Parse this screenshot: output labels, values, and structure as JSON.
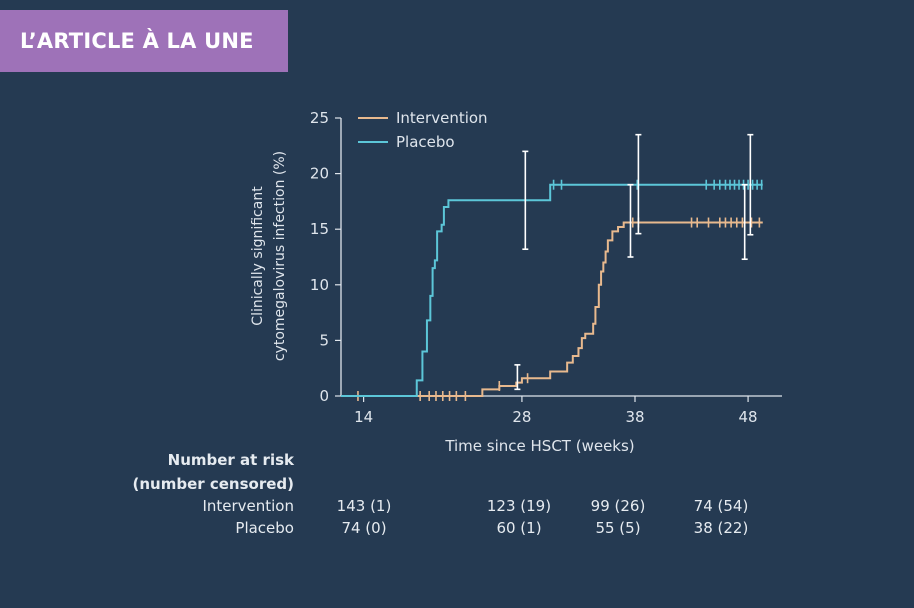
{
  "banner": {
    "text": "L’ARTICLE À LA UNE"
  },
  "chart_data": {
    "type": "line",
    "title": "",
    "xlabel": "Time since HSCT (weeks)",
    "ylabel_line1": "Clinically significant",
    "ylabel_line2": "cytomegalovirus  infection (%)",
    "ylim": [
      0,
      25
    ],
    "xlim": [
      12,
      51
    ],
    "xticks": [
      14,
      28,
      38,
      48
    ],
    "yticks": [
      0,
      5,
      10,
      15,
      20,
      25
    ],
    "grid": false,
    "legend_position": "top-left",
    "series": [
      {
        "name": "Intervention",
        "color": "#e8b98e",
        "steps": [
          [
            12,
            0
          ],
          [
            23.5,
            0
          ],
          [
            24.5,
            0.6
          ],
          [
            26,
            0.9
          ],
          [
            27.5,
            1.2
          ],
          [
            28,
            1.6
          ],
          [
            30.5,
            2.2
          ],
          [
            32,
            3.0
          ],
          [
            32.5,
            3.6
          ],
          [
            33,
            4.3
          ],
          [
            33.3,
            5.2
          ],
          [
            33.6,
            5.6
          ],
          [
            34.3,
            6.5
          ],
          [
            34.5,
            8.0
          ],
          [
            34.8,
            10.0
          ],
          [
            35,
            11.2
          ],
          [
            35.2,
            12.0
          ],
          [
            35.4,
            13.0
          ],
          [
            35.6,
            14.0
          ],
          [
            36,
            14.8
          ],
          [
            36.5,
            15.2
          ],
          [
            37,
            15.6
          ],
          [
            49.3,
            15.6
          ]
        ],
        "censor_x": [
          13.5,
          19,
          19.8,
          20.4,
          21,
          21.6,
          22.2,
          23,
          26,
          28.5,
          37.8,
          38.3,
          43,
          43.5,
          44.5,
          45.5,
          46,
          46.5,
          47,
          47.5,
          48.3,
          49
        ]
      },
      {
        "name": "Placebo",
        "color": "#5cc6d8",
        "steps": [
          [
            12,
            0
          ],
          [
            18.5,
            0
          ],
          [
            18.7,
            1.4
          ],
          [
            19.2,
            4.0
          ],
          [
            19.6,
            6.8
          ],
          [
            19.9,
            9.0
          ],
          [
            20.1,
            11.5
          ],
          [
            20.3,
            12.2
          ],
          [
            20.5,
            14.8
          ],
          [
            20.9,
            15.4
          ],
          [
            21.1,
            17.0
          ],
          [
            21.5,
            17.6
          ],
          [
            28.2,
            17.6
          ],
          [
            30.5,
            19.0
          ],
          [
            49.3,
            19.0
          ]
        ],
        "censor_x": [
          30.8,
          31.5,
          38.2,
          44.3,
          45,
          45.5,
          46,
          46.4,
          46.8,
          47.2,
          47.6,
          48,
          48.4,
          48.8,
          49.2
        ]
      }
    ],
    "error_bars": [
      {
        "x": 28.3,
        "low": 13.2,
        "high": 22.0
      },
      {
        "x": 37.6,
        "low": 12.5,
        "high": 19.0
      },
      {
        "x": 38.3,
        "low": 14.6,
        "high": 23.5
      },
      {
        "x": 47.7,
        "low": 12.3,
        "high": 19.0
      },
      {
        "x": 48.2,
        "low": 14.5,
        "high": 23.5
      },
      {
        "x": 27.6,
        "low": 0.6,
        "high": 2.8
      }
    ]
  },
  "risk_table": {
    "header_line1": "Number at risk",
    "header_line2": "(number censored)",
    "rows": [
      {
        "label": "Intervention",
        "values": [
          "143 (1)",
          "123 (19)",
          "99 (26)",
          "74 (54)"
        ]
      },
      {
        "label": "Placebo",
        "values": [
          "74 (0)",
          "60 (1)",
          "55 (5)",
          "38 (22)"
        ]
      }
    ]
  }
}
